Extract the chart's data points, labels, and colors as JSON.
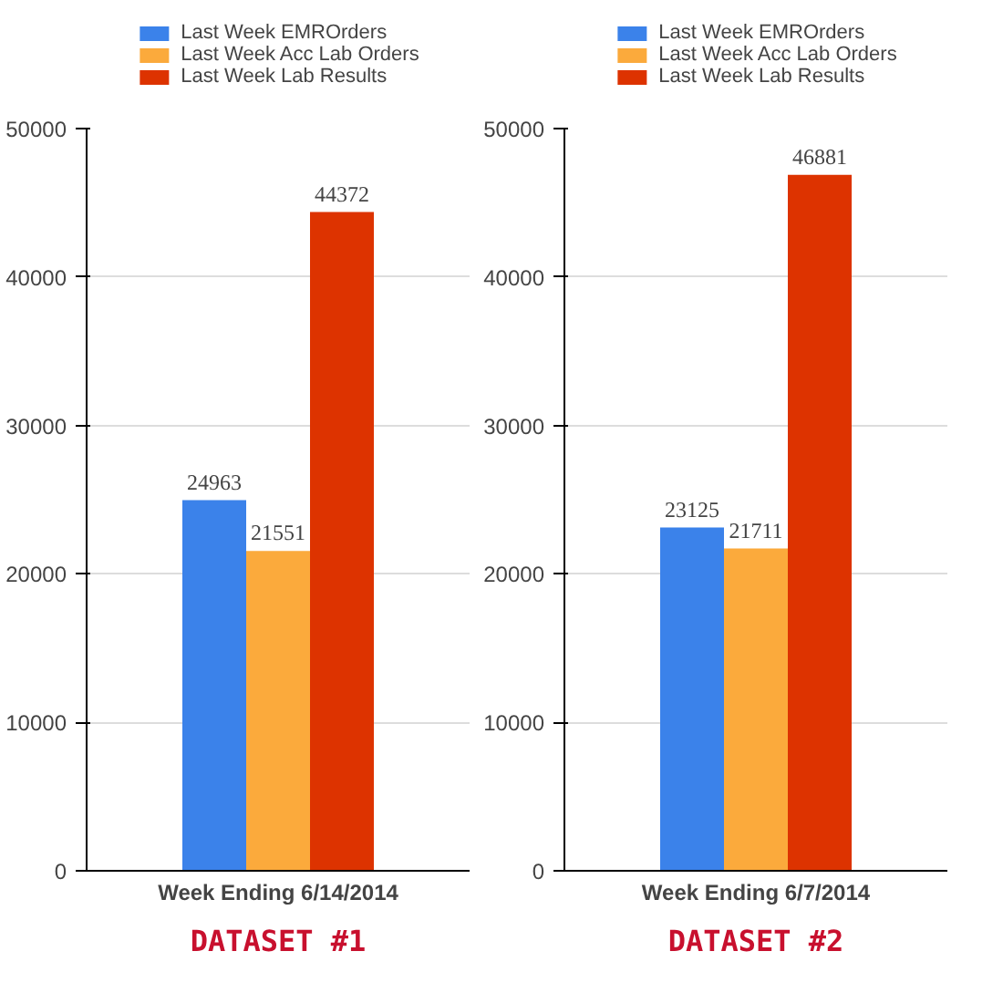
{
  "chart_data": [
    {
      "type": "bar",
      "categories": [
        null
      ],
      "xlabel": "Week Ending 6/14/2014",
      "ylim": [
        0,
        50000
      ],
      "yticks": [
        0,
        10000,
        20000,
        30000,
        40000,
        50000
      ],
      "grid": "y",
      "legend": "top",
      "tick_labels": "y",
      "data_labels": true,
      "annotations": [
        "DATASET #1"
      ],
      "series": [
        {
          "name": "Last Week EMROrders",
          "color": "#3b82ea",
          "values": [
            24963
          ]
        },
        {
          "name": "Last Week Acc Lab Orders",
          "color": "#fbaa3c",
          "values": [
            21551
          ]
        },
        {
          "name": "Last Week Lab Results",
          "color": "#dd3300",
          "values": [
            44372
          ]
        }
      ]
    },
    {
      "type": "bar",
      "categories": [
        null
      ],
      "xlabel": "Week Ending 6/7/2014",
      "ylim": [
        0,
        50000
      ],
      "yticks": [
        0,
        10000,
        20000,
        30000,
        40000,
        50000
      ],
      "grid": "y",
      "legend": "top",
      "tick_labels": "y",
      "data_labels": true,
      "annotations": [
        "DATASET #2"
      ],
      "series": [
        {
          "name": "Last Week EMROrders",
          "color": "#3b82ea",
          "values": [
            23125
          ]
        },
        {
          "name": "Last Week Acc Lab Orders",
          "color": "#fbaa3c",
          "values": [
            21711
          ]
        },
        {
          "name": "Last Week Lab Results",
          "color": "#dd3300",
          "values": [
            46881
          ]
        }
      ]
    }
  ]
}
